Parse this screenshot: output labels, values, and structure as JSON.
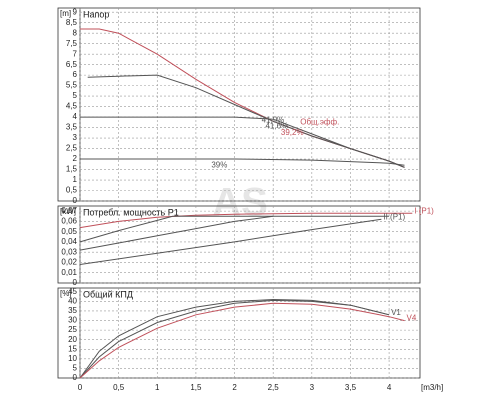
{
  "watermark": "AS",
  "chart_data": [
    {
      "type": "line",
      "title": "Напор",
      "y_unit": "[m]",
      "xlim": [
        0,
        4.4
      ],
      "xticks": [
        0,
        0.5,
        1,
        1.5,
        2,
        2.5,
        3,
        3.5,
        4
      ],
      "ylim": [
        0,
        9.2
      ],
      "yticks": [
        0,
        {
          "value": 0.5,
          "label": "0,5"
        },
        1,
        {
          "value": 1.5,
          "label": "1,5"
        },
        2,
        {
          "value": 2.5,
          "label": "2,5"
        },
        3,
        {
          "value": 3.5,
          "label": "3,5"
        },
        4,
        {
          "value": 4.5,
          "label": "4,5"
        },
        5,
        {
          "value": 5.5,
          "label": "5,5"
        },
        6,
        {
          "value": 6.5,
          "label": "6,5"
        },
        7,
        {
          "value": 7.5,
          "label": "7,5"
        },
        8,
        {
          "value": 8.5,
          "label": "8,5"
        },
        9
      ],
      "grid": true,
      "series": [
        {
          "color": "#c0505a",
          "x": [
            0,
            0.25,
            0.5,
            1,
            1.5,
            2,
            2.5,
            3,
            3.5,
            4,
            4.2
          ],
          "values": [
            8.2,
            8.2,
            8.0,
            7.0,
            5.8,
            4.7,
            3.8,
            3.1,
            2.5,
            1.9,
            1.6
          ]
        },
        {
          "color": "#555555",
          "x": [
            0.1,
            0.5,
            1,
            1.5,
            2,
            2.5,
            3,
            3.5,
            4,
            4.2
          ],
          "values": [
            5.9,
            5.95,
            6.0,
            5.4,
            4.6,
            3.8,
            3.1,
            2.5,
            1.9,
            1.6
          ]
        },
        {
          "color": "#555555",
          "x": [
            0,
            1,
            2,
            2.5,
            3,
            3.5,
            4,
            4.2
          ],
          "values": [
            4.0,
            4.0,
            4.0,
            3.9,
            3.2,
            2.5,
            1.9,
            1.6
          ]
        },
        {
          "color": "#555555",
          "x": [
            0,
            1,
            2,
            3,
            4,
            4.2
          ],
          "values": [
            2.0,
            2.0,
            2.0,
            1.95,
            1.8,
            1.7
          ]
        }
      ],
      "annotations": [
        {
          "text": "41,9%",
          "x": 2.35,
          "y": 3.85,
          "color": "#555555"
        },
        {
          "text": "41,6%",
          "x": 2.4,
          "y": 3.55,
          "color": "#555555"
        },
        {
          "text": "39,2%",
          "x": 2.6,
          "y": 3.25,
          "color": "#c0505a"
        },
        {
          "text": "Общ.эфф.",
          "x": 2.85,
          "y": 3.75,
          "color": "#c0505a"
        },
        {
          "text": "39%",
          "x": 1.7,
          "y": 1.7,
          "color": "#555555"
        }
      ]
    },
    {
      "type": "line",
      "title": "Потребл. мощность P1",
      "y_unit": "[kW]",
      "xlim": [
        0,
        4.4
      ],
      "xticks": [
        0,
        0.5,
        1,
        1.5,
        2,
        2.5,
        3,
        3.5,
        4
      ],
      "ylim": [
        0,
        0.075
      ],
      "yticks": [
        0,
        {
          "value": 0.01,
          "label": "0,01"
        },
        {
          "value": 0.02,
          "label": "0,02"
        },
        {
          "value": 0.03,
          "label": "0,03"
        },
        {
          "value": 0.04,
          "label": "0,04"
        },
        {
          "value": 0.05,
          "label": "0,05"
        },
        {
          "value": 0.06,
          "label": "0,06"
        },
        {
          "value": 0.07,
          "label": "0,07"
        }
      ],
      "grid": true,
      "series": [
        {
          "name": "I (P1)",
          "color": "#c0505a",
          "x": [
            0,
            0.5,
            1,
            1.5,
            2,
            3,
            4,
            4.3
          ],
          "values": [
            0.054,
            0.06,
            0.064,
            0.066,
            0.067,
            0.068,
            0.068,
            0.068
          ]
        },
        {
          "color": "#555555",
          "x": [
            0,
            0.5,
            1,
            1.2,
            2,
            2.5
          ],
          "values": [
            0.04,
            0.051,
            0.061,
            0.065,
            0.065,
            0.065
          ]
        },
        {
          "color": "#555555",
          "x": [
            0,
            0.5,
            1,
            1.5,
            2,
            2.5,
            3,
            4
          ],
          "values": [
            0.032,
            0.039,
            0.046,
            0.053,
            0.06,
            0.065,
            0.065,
            0.065
          ]
        },
        {
          "name": "II (P1)",
          "color": "#555555",
          "x": [
            0,
            1,
            2,
            3,
            3.9
          ],
          "values": [
            0.018,
            0.029,
            0.04,
            0.052,
            0.062
          ]
        }
      ]
    },
    {
      "type": "line",
      "title": "Общий КПД",
      "y_unit": "[%]",
      "xlim": [
        0,
        4.4
      ],
      "xticks": [
        0,
        {
          "value": 0.5,
          "label": "0,5"
        },
        1,
        {
          "value": 1.5,
          "label": "1,5"
        },
        2,
        {
          "value": 2.5,
          "label": "2,5"
        },
        3,
        {
          "value": 3.5,
          "label": "3,5"
        },
        4
      ],
      "x_unit": "[m3/h]",
      "ylim": [
        0,
        47
      ],
      "yticks": [
        0,
        5,
        10,
        15,
        20,
        25,
        30,
        35,
        40,
        45
      ],
      "grid": true,
      "series": [
        {
          "color": "#555555",
          "x": [
            0,
            0.25,
            0.5,
            1,
            1.5,
            2,
            2.5,
            3,
            3.5,
            4
          ],
          "values": [
            0,
            14,
            22,
            32,
            37,
            40,
            41,
            40.5,
            38,
            33
          ]
        },
        {
          "name": "V1",
          "color": "#555555",
          "x": [
            0,
            0.25,
            0.5,
            1,
            1.5,
            2,
            2.5,
            3,
            3.5,
            4
          ],
          "values": [
            0,
            11,
            19,
            29,
            35,
            39,
            40.5,
            40,
            38,
            33
          ]
        },
        {
          "name": "V4",
          "color": "#c0505a",
          "x": [
            0,
            0.25,
            0.5,
            1,
            1.5,
            2,
            2.5,
            3,
            3.5,
            4,
            4.2
          ],
          "values": [
            0,
            9,
            16,
            26,
            33,
            37,
            39,
            38.5,
            36,
            32,
            30
          ]
        }
      ]
    }
  ]
}
